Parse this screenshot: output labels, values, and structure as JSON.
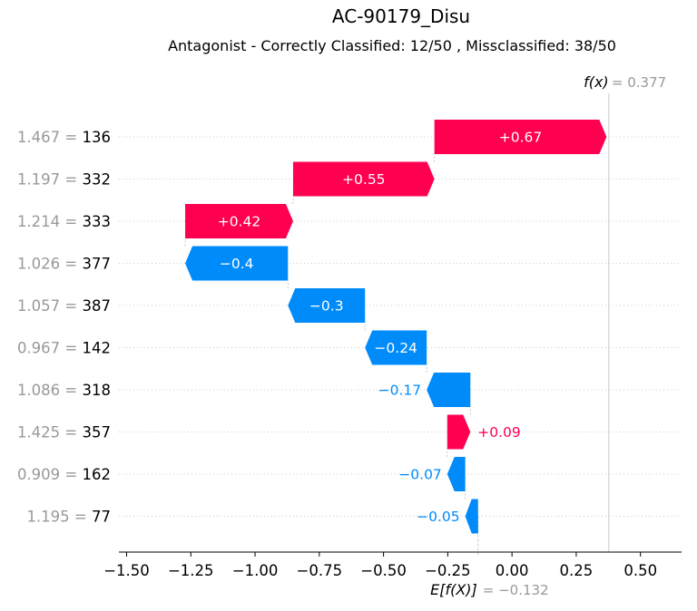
{
  "title": "AC-90179_Disu",
  "subtitle": "Antagonist - Correctly Classified: 12/50 , Missclassified: 38/50",
  "chart_data": {
    "type": "waterfall",
    "base_value": -0.132,
    "base_value_label": "= −0.132",
    "base_label": "E[f(X)]",
    "output_value": 0.377,
    "output_value_label": "= 0.377",
    "output_label": "f(x)",
    "features": [
      {
        "value_text": "1.467 = ",
        "name": "136",
        "contribution": 0.67,
        "label": "+0.67"
      },
      {
        "value_text": "1.197 = ",
        "name": "332",
        "contribution": 0.55,
        "label": "+0.55"
      },
      {
        "value_text": "1.214 = ",
        "name": "333",
        "contribution": 0.42,
        "label": "+0.42"
      },
      {
        "value_text": "1.026 = ",
        "name": "377",
        "contribution": -0.4,
        "label": "−0.4"
      },
      {
        "value_text": "1.057 = ",
        "name": "387",
        "contribution": -0.3,
        "label": "−0.3"
      },
      {
        "value_text": "0.967 = ",
        "name": "142",
        "contribution": -0.24,
        "label": "−0.24"
      },
      {
        "value_text": "1.086 = ",
        "name": "318",
        "contribution": -0.17,
        "label": "−0.17"
      },
      {
        "value_text": "1.425 = ",
        "name": "357",
        "contribution": 0.09,
        "label": "+0.09"
      },
      {
        "value_text": "0.909 = ",
        "name": "162",
        "contribution": -0.07,
        "label": "−0.07"
      },
      {
        "value_text": "1.195 = ",
        "name": "77",
        "contribution": -0.05,
        "label": "−0.05"
      }
    ],
    "x_ticks": [
      {
        "value": -1.5,
        "label": "−1.50"
      },
      {
        "value": -1.25,
        "label": "−1.25"
      },
      {
        "value": -1.0,
        "label": "−1.00"
      },
      {
        "value": -0.75,
        "label": "−0.75"
      },
      {
        "value": -0.5,
        "label": "−0.50"
      },
      {
        "value": -0.25,
        "label": "−0.25"
      },
      {
        "value": 0.0,
        "label": "0.00"
      },
      {
        "value": 0.25,
        "label": "0.25"
      },
      {
        "value": 0.5,
        "label": "0.50"
      }
    ],
    "xlim": [
      -1.53,
      0.66
    ],
    "colors": {
      "positive": "#ff0051",
      "negative": "#008bfb",
      "muted": "#999999"
    }
  }
}
